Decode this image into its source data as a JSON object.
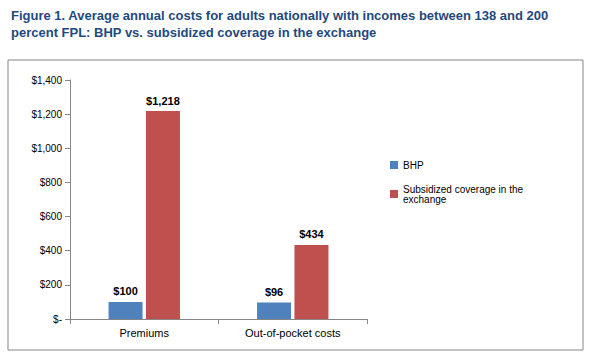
{
  "chart_data": {
    "type": "bar",
    "title": "Figure 1. Average annual costs for adults nationally with incomes between 138 and 200 percent FPL: BHP vs. subsidized coverage in the exchange",
    "categories": [
      "Premiums",
      "Out-of-pocket costs"
    ],
    "series": [
      {
        "name": "BHP",
        "color": "#4f81bd",
        "values": [
          100,
          96
        ],
        "value_labels": [
          "$100",
          "$96"
        ]
      },
      {
        "name": "Subsidized coverage in the exchange",
        "color": "#c0504d",
        "values": [
          1218,
          434
        ],
        "value_labels": [
          "$1,218",
          "$434"
        ]
      }
    ],
    "ylim": [
      0,
      1400
    ],
    "yticks": [
      {
        "value": 0,
        "label": "$-"
      },
      {
        "value": 200,
        "label": "$200"
      },
      {
        "value": 400,
        "label": "$400"
      },
      {
        "value": 600,
        "label": "$600"
      },
      {
        "value": 800,
        "label": "$800"
      },
      {
        "value": 1000,
        "label": "$1,000"
      },
      {
        "value": 1200,
        "label": "$1,200"
      },
      {
        "value": 1400,
        "label": "$1,400"
      }
    ],
    "grid": false,
    "legend": "right",
    "data_labels": true
  }
}
